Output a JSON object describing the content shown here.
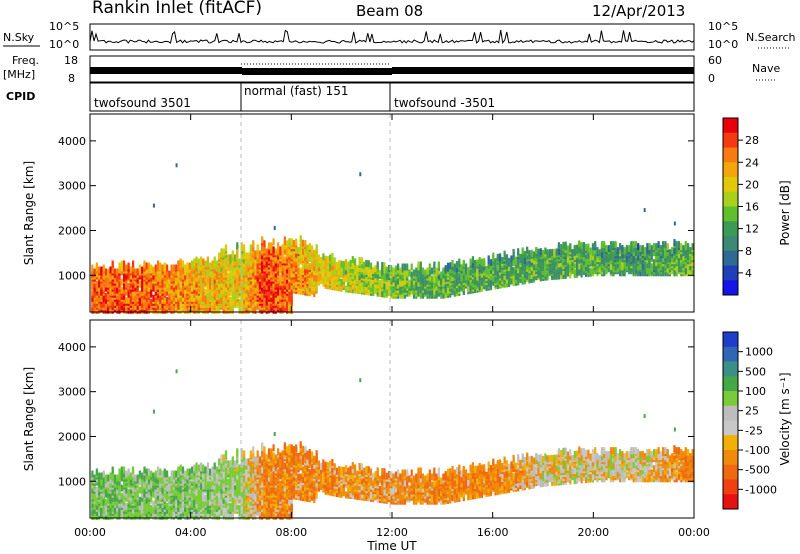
{
  "header": {
    "station": "Rankin Inlet (fitACF)",
    "beam": "Beam 08",
    "date": "12/Apr/2013"
  },
  "noise_panel": {
    "left_label": "N.Sky",
    "left_ticks": [
      "10^5",
      "10^0"
    ],
    "right_label": "N.Search",
    "right_ticks": [
      "10^5",
      "10^0"
    ]
  },
  "freq_panel": {
    "left_label_line1": "Freq.",
    "left_label_line2": "[MHz]",
    "left_ticks": [
      "18",
      "8"
    ],
    "right_label": "Nave",
    "right_ticks": [
      "60",
      "0"
    ]
  },
  "cpid": {
    "label": "CPID",
    "segments": [
      {
        "name": "twofsound 3501",
        "start_h": 0,
        "end_h": 6
      },
      {
        "name": "normal (fast) 151",
        "start_h": 6,
        "end_h": 12
      },
      {
        "name": "twofsound -3501",
        "start_h": 12,
        "end_h": 24
      }
    ]
  },
  "panels": {
    "power": {
      "ylabel": "Slant Range [km]"
    },
    "velocity": {
      "ylabel": "Slant Range [km]"
    }
  },
  "colorbars": {
    "power": {
      "label": "Power [dB]",
      "ticks": [
        "28",
        "24",
        "20",
        "16",
        "12",
        "8",
        "4"
      ],
      "colors": [
        "#e8000b",
        "#f53a10",
        "#f77b10",
        "#f2a60c",
        "#e2c80a",
        "#a9d11b",
        "#5fbf2d",
        "#3d9a55",
        "#3c8a73",
        "#2f6a95",
        "#1e3fb8",
        "#1414e6"
      ]
    },
    "velocity": {
      "label": "Velocity [m s⁻¹]",
      "ticks": [
        "1000",
        "500",
        "100",
        "25",
        "-25",
        "-100",
        "-500",
        "-1000"
      ],
      "colors": [
        "#1d3ec8",
        "#2f67b5",
        "#3c8f86",
        "#46a748",
        "#78cc38",
        "#bdbdbd",
        "#c8c8c8",
        "#f2b007",
        "#f08a0a",
        "#f0680f",
        "#f04012",
        "#e61111"
      ]
    }
  },
  "x_axis": {
    "label": "Time UT",
    "ticks": [
      "00:00",
      "04:00",
      "08:00",
      "12:00",
      "16:00",
      "20:00",
      "00:00"
    ]
  },
  "chart_data": [
    {
      "type": "heatmap",
      "title": "Power",
      "xlabel": "Time UT",
      "ylabel": "Slant Range [km]",
      "xlim": [
        0,
        24
      ],
      "ylim": [
        180,
        4600
      ],
      "y_ticks": [
        1000,
        2000,
        3000,
        4000
      ],
      "colorbar": "Power [dB]",
      "colorbar_ticks": [
        4,
        8,
        12,
        16,
        20,
        24,
        28
      ],
      "echo_band_time_h": [
        0,
        2,
        4,
        6,
        7,
        8,
        10,
        12,
        14,
        16,
        18,
        20,
        22,
        24
      ],
      "echo_band_center_km": [
        900,
        950,
        1000,
        1050,
        1200,
        1250,
        1050,
        900,
        900,
        1100,
        1300,
        1400,
        1400,
        1400
      ],
      "typical_power_dB_by_time": [
        26,
        26,
        22,
        20,
        28,
        24,
        18,
        14,
        12,
        12,
        12,
        12,
        10,
        14
      ]
    },
    {
      "type": "heatmap",
      "title": "Velocity",
      "xlabel": "Time UT",
      "ylabel": "Slant Range [km]",
      "xlim": [
        0,
        24
      ],
      "ylim": [
        180,
        4600
      ],
      "y_ticks": [
        1000,
        2000,
        3000,
        4000
      ],
      "colorbar": "Velocity [m s-1]",
      "colorbar_ticks": [
        1000,
        500,
        100,
        25,
        -25,
        -100,
        -500,
        -1000
      ],
      "typical_velocity_ms_by_time": [
        150,
        120,
        100,
        50,
        -150,
        -150,
        -120,
        -120,
        -150,
        -150,
        -20,
        -10,
        -10,
        -200
      ]
    }
  ]
}
